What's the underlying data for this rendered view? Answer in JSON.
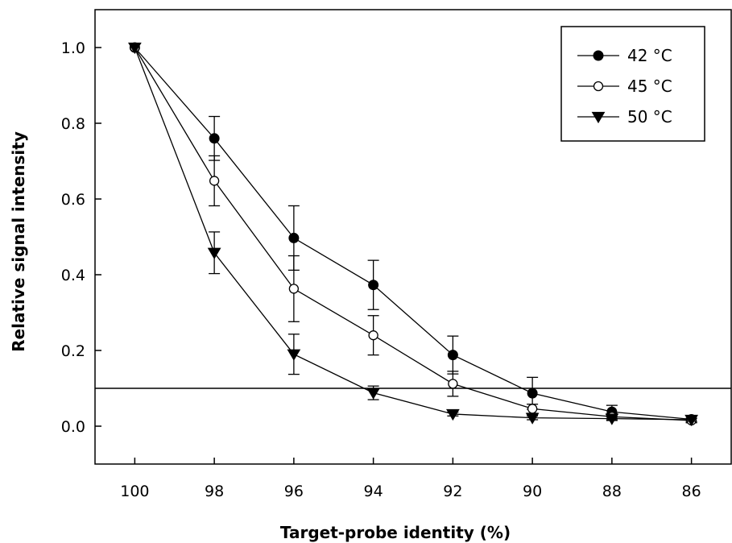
{
  "chart_data": {
    "type": "line",
    "title": "",
    "xlabel": "Target-probe identity (%)",
    "ylabel": "Relative signal intensity",
    "x": [
      100,
      98,
      96,
      94,
      92,
      90,
      88,
      86
    ],
    "xlim": [
      101,
      85
    ],
    "x_reversed": true,
    "xticks": [
      "100",
      "98",
      "96",
      "94",
      "92",
      "90",
      "88",
      "86"
    ],
    "ylim": [
      -0.1,
      1.1
    ],
    "yticks": [
      "0.0",
      "0.2",
      "0.4",
      "0.6",
      "0.8",
      "1.0"
    ],
    "grid": false,
    "legend_position": "top-right",
    "series": [
      {
        "name": "42 °C",
        "marker": "filled-circle",
        "color": "#000000",
        "values": [
          1.0,
          0.76,
          0.497,
          0.373,
          0.188,
          0.087,
          0.038,
          0.018
        ],
        "errors": [
          0.0,
          0.058,
          0.085,
          0.065,
          0.05,
          0.042,
          0.017,
          0.008
        ]
      },
      {
        "name": "45 °C",
        "marker": "open-circle",
        "color": "#000000",
        "values": [
          1.0,
          0.648,
          0.363,
          0.24,
          0.112,
          0.046,
          0.025,
          0.015
        ],
        "errors": [
          0.0,
          0.066,
          0.087,
          0.052,
          0.033,
          0.012,
          0.008,
          0.006
        ]
      },
      {
        "name": "50 °C",
        "marker": "filled-triangle-down",
        "color": "#000000",
        "values": [
          1.0,
          0.458,
          0.19,
          0.088,
          0.032,
          0.022,
          0.02,
          0.017
        ],
        "errors": [
          0.0,
          0.055,
          0.053,
          0.018,
          0.005,
          0.005,
          0.005,
          0.004
        ]
      }
    ],
    "reference_lines": [
      {
        "orientation": "horizontal",
        "y": 0.1
      }
    ]
  }
}
